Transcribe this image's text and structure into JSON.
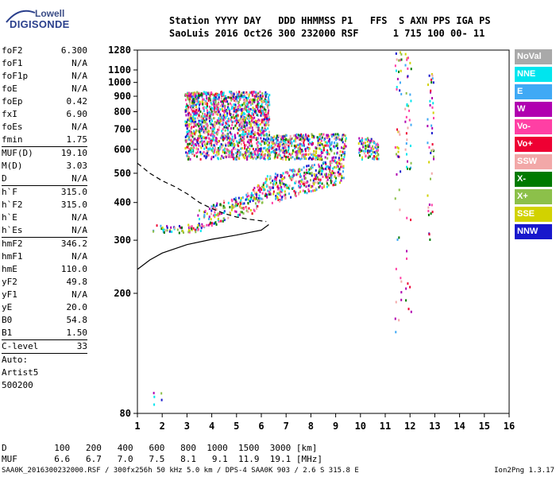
{
  "logo": {
    "line1": "Lowell",
    "line2": "DIGISONDE"
  },
  "header": {
    "line1": "Station YYYY DAY   DDD HHMMSS P1   FFS  S AXN PPS IGA PS",
    "line2": "SaoLuis 2016 Oct26 300 232000 RSF      1 715 100 00- 11"
  },
  "params": {
    "group1": [
      {
        "name": "foF2",
        "value": "6.300"
      },
      {
        "name": "foF1",
        "value": "N/A"
      },
      {
        "name": "foF1p",
        "value": "N/A"
      },
      {
        "name": "foE",
        "value": "N/A"
      },
      {
        "name": "foEp",
        "value": "0.42"
      },
      {
        "name": "fxI",
        "value": "6.90"
      },
      {
        "name": "foEs",
        "value": "N/A"
      },
      {
        "name": "fmin",
        "value": "1.75"
      }
    ],
    "group2": [
      {
        "name": "MUF(D)",
        "value": "19.10"
      },
      {
        "name": "M(D)",
        "value": "3.03"
      },
      {
        "name": "D",
        "value": "N/A"
      }
    ],
    "group3": [
      {
        "name": "h`F",
        "value": "315.0"
      },
      {
        "name": "h`F2",
        "value": "315.0"
      },
      {
        "name": "h`E",
        "value": "N/A"
      },
      {
        "name": "h`Es",
        "value": "N/A"
      }
    ],
    "group4": [
      {
        "name": "hmF2",
        "value": "346.2"
      },
      {
        "name": "hmF1",
        "value": "N/A"
      },
      {
        "name": "hmE",
        "value": "110.0"
      },
      {
        "name": "yF2",
        "value": "49.8"
      },
      {
        "name": "yF1",
        "value": "N/A"
      },
      {
        "name": "yE",
        "value": "20.0"
      },
      {
        "name": "B0",
        "value": "54.8"
      },
      {
        "name": "B1",
        "value": "1.50"
      }
    ],
    "group5": [
      {
        "name": "C-level",
        "value": "33"
      }
    ],
    "auto": [
      "Auto:",
      "Artist5",
      "500200"
    ]
  },
  "legend": [
    {
      "label": "NoVal",
      "color": "#a9a9a9"
    },
    {
      "label": "NNE",
      "color": "#00e5ee"
    },
    {
      "label": "E",
      "color": "#3fa9f5"
    },
    {
      "label": "W",
      "color": "#b000b0"
    },
    {
      "label": "Vo-",
      "color": "#ff3fa4"
    },
    {
      "label": "Vo+",
      "color": "#ee0033"
    },
    {
      "label": "SSW",
      "color": "#f2a8a8"
    },
    {
      "label": "X-",
      "color": "#007a00"
    },
    {
      "label": "X+",
      "color": "#8cc04a"
    },
    {
      "label": "SSE",
      "color": "#d2d200"
    },
    {
      "label": "NNW",
      "color": "#1818cc"
    }
  ],
  "mufTable": {
    "dLabel": "D",
    "mufLabel": "MUF",
    "dValues": [
      "100",
      "200",
      "400",
      "600",
      "800",
      "1000",
      "1500",
      "3000"
    ],
    "dUnit": "[km]",
    "mufValues": [
      "6.6",
      "6.7",
      "7.0",
      "7.5",
      "8.1",
      "9.1",
      "11.9",
      "19.1"
    ],
    "mufUnit": "[MHz]"
  },
  "footer": {
    "left": "SAA0K_2016300232000.RSF / 300fx256h 50 kHz 5.0 km / DPS-4 SAA0K 903 / 2.6 S 315.8 E",
    "right": "Ion2Png 1.3.17"
  },
  "chart_data": {
    "type": "scatter",
    "title": "",
    "xlabel": "",
    "ylabel": "",
    "xlim": [
      1,
      16
    ],
    "ylim": [
      80,
      1280
    ],
    "xticks": [
      "1",
      "2",
      "3",
      "4",
      "5",
      "6",
      "7",
      "8",
      "9",
      "10",
      "11",
      "12",
      "13",
      "14",
      "15",
      "16"
    ],
    "yticks": [
      80,
      200,
      300,
      400,
      500,
      600,
      700,
      800,
      900,
      1000,
      1100,
      1280
    ],
    "ytick_labels": [
      "80",
      "200",
      "300",
      "400",
      "500",
      "600",
      "700",
      "800",
      "900",
      "1000",
      "1100",
      "1280"
    ],
    "colors": [
      "#ee0033",
      "#ff3fa4",
      "#b000b0",
      "#1818cc",
      "#d2d200",
      "#8cc04a",
      "#007a00",
      "#3fa9f5",
      "#00e5ee",
      "#f2a8a8"
    ],
    "traces": [
      {
        "name": "F trace",
        "start": 1.6,
        "end": 3.4,
        "base_height": 318,
        "rise": 0,
        "spread": 22
      },
      {
        "name": "F trace",
        "start": 3.4,
        "end": 5.6,
        "base_height": 320,
        "rise": 60,
        "spread": 60
      },
      {
        "name": "F trace",
        "start": 5.6,
        "end": 6.4,
        "base_height": 370,
        "rise": 60,
        "spread": 80
      },
      {
        "name": "F trace",
        "start": 6.4,
        "end": 9.3,
        "base_height": 400,
        "rise": 70,
        "spread": 100
      },
      {
        "name": "O/X upper",
        "start": 2.9,
        "end": 6.3,
        "base_height": 560,
        "rise": 0,
        "spread": 380
      },
      {
        "name": "second hop",
        "start": 6.2,
        "end": 9.4,
        "base_height": 560,
        "rise": 0,
        "spread": 120
      },
      {
        "name": "scatter 10",
        "start": 9.9,
        "end": 10.7,
        "base_height": 560,
        "rise": 0,
        "spread": 100
      },
      {
        "name": "low echo",
        "start": 1.6,
        "end": 2.0,
        "base_height": 86,
        "rise": 0,
        "spread": 10
      }
    ],
    "columns": [
      {
        "name": "column 11.5",
        "x": 11.5,
        "ymin": 150,
        "ymax": 1280
      },
      {
        "name": "column 11.9",
        "x": 11.9,
        "ymin": 160,
        "ymax": 1280
      },
      {
        "name": "column 12.8",
        "x": 12.8,
        "ymin": 280,
        "ymax": 1080
      }
    ],
    "curves": [
      {
        "name": "profile-solid",
        "style": "solid",
        "points": [
          [
            1,
            240
          ],
          [
            1.5,
            258
          ],
          [
            2,
            272
          ],
          [
            3,
            290
          ],
          [
            4,
            302
          ],
          [
            5,
            312
          ],
          [
            6,
            324
          ],
          [
            6.3,
            338
          ]
        ]
      },
      {
        "name": "profile-dashed",
        "style": "dashed",
        "points": [
          [
            1,
            540
          ],
          [
            1.5,
            500
          ],
          [
            2,
            472
          ],
          [
            2.5,
            452
          ],
          [
            3,
            428
          ],
          [
            3.5,
            400
          ],
          [
            4,
            382
          ],
          [
            4.5,
            368
          ],
          [
            5,
            358
          ],
          [
            5.5,
            352
          ],
          [
            6.2,
            346
          ]
        ]
      }
    ]
  }
}
